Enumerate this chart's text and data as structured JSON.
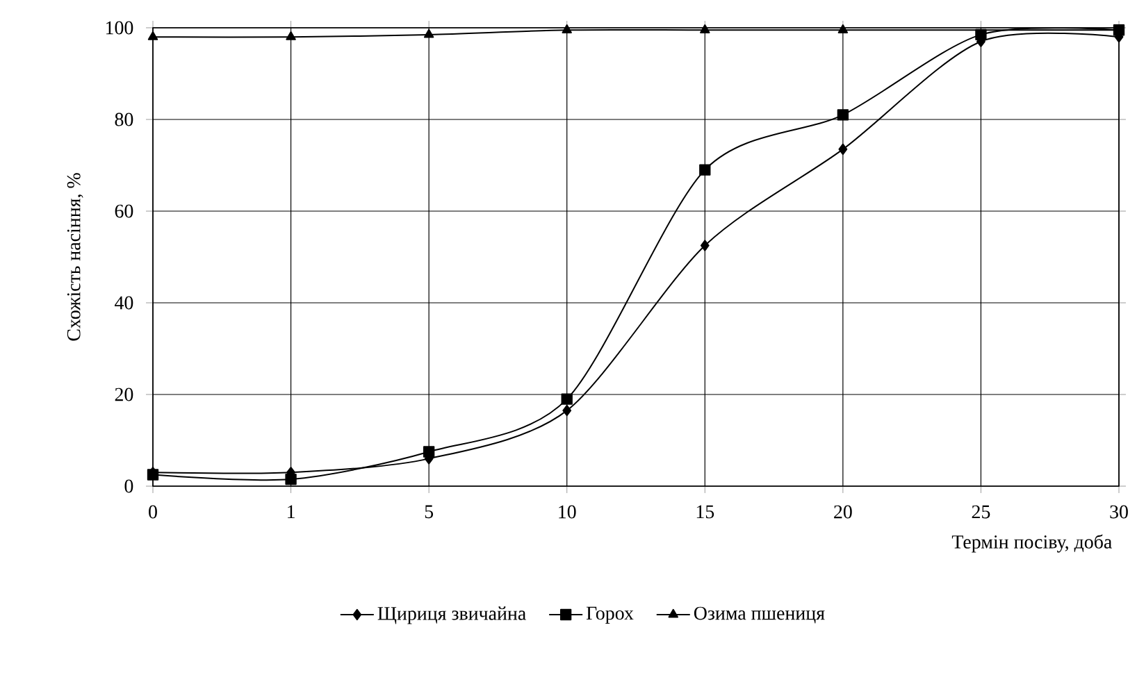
{
  "chart_data": {
    "type": "line",
    "xlabel": "Термін посіву, доба",
    "ylabel": "Схожість насіння, %",
    "categories": [
      "0",
      "1",
      "5",
      "10",
      "15",
      "20",
      "25",
      "30"
    ],
    "series": [
      {
        "name": "Щириця звичайна",
        "color": "#000000",
        "marker": "diamond",
        "values": [
          3,
          3,
          6,
          16.5,
          52.5,
          73.5,
          97,
          98
        ]
      },
      {
        "name": "Горох",
        "color": "#000000",
        "marker": "square",
        "values": [
          2.5,
          1.5,
          7.5,
          19,
          69,
          81,
          98.5,
          99.5
        ]
      },
      {
        "name": "Озима пшениця",
        "color": "#000000",
        "marker": "triangle",
        "values": [
          98,
          98,
          98.5,
          99.5,
          99.5,
          99.5,
          null,
          99.5
        ]
      }
    ],
    "ylim": [
      0,
      100
    ],
    "yticks": [
      0,
      20,
      40,
      60,
      80,
      100
    ],
    "grid": true,
    "legend": "bottom",
    "line_style": "solid"
  }
}
